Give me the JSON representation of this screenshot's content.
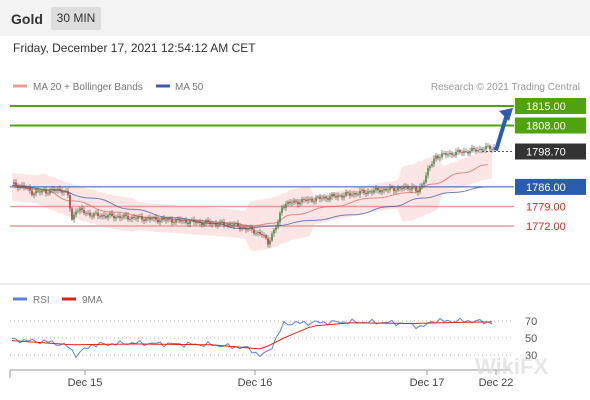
{
  "header": {
    "instrument": "Gold",
    "timeframe": "30 MIN",
    "datetime": "Friday, December 17, 2021 12:54:12 AM CET"
  },
  "legend": {
    "ma20_label": "MA 20 + Bollinger Bands",
    "ma50_label": "MA 50",
    "credit": "Research © 2021 Trading Central"
  },
  "colors": {
    "resistance": "#4fa30c",
    "support_line": "#e89c9c",
    "support_label": "#d9261c",
    "pivot": "#2a5cb0",
    "current": "#333333",
    "ma20": "#e06060",
    "ma50": "#3b5ea8",
    "band_fill": "#fbdcdc",
    "candle_up": "#3a8c3a",
    "candle_down": "#c03030",
    "rsi": "#5f80d8",
    "rsi_ma": "#d9261c"
  },
  "chart_data": [
    {
      "type": "candlestick",
      "ylim": [
        1760,
        1820
      ],
      "x_labels": [
        "Dec 15",
        "Dec 16",
        "Dec 17",
        "Dec 22"
      ],
      "levels": [
        {
          "name": "resistance-2",
          "value": 1815.0,
          "label": "1815.00",
          "kind": "resistance"
        },
        {
          "name": "resistance-1",
          "value": 1808.0,
          "label": "1808.00",
          "kind": "resistance"
        },
        {
          "name": "current-price",
          "value": 1798.7,
          "label": "1798.70",
          "kind": "current"
        },
        {
          "name": "pivot",
          "value": 1786.0,
          "label": "1786.00",
          "kind": "pivot"
        },
        {
          "name": "support-1",
          "value": 1779.0,
          "label": "1779.00",
          "kind": "support"
        },
        {
          "name": "support-2",
          "value": 1772.0,
          "label": "1772.00",
          "kind": "support"
        }
      ],
      "price_path": [
        [
          0,
          1787
        ],
        [
          6,
          1786
        ],
        [
          10,
          1784
        ],
        [
          18,
          1784.5
        ],
        [
          25,
          1785
        ],
        [
          28,
          1783
        ],
        [
          30,
          1774
        ],
        [
          32,
          1778
        ],
        [
          40,
          1776
        ],
        [
          50,
          1775.5
        ],
        [
          60,
          1775
        ],
        [
          70,
          1774.5
        ],
        [
          80,
          1774
        ],
        [
          90,
          1773.5
        ],
        [
          100,
          1773
        ],
        [
          110,
          1772.5
        ],
        [
          118,
          1771
        ],
        [
          125,
          1769
        ],
        [
          128,
          1766
        ],
        [
          130,
          1769
        ],
        [
          133,
          1773
        ],
        [
          135,
          1779
        ],
        [
          137,
          1780
        ],
        [
          145,
          1781
        ],
        [
          155,
          1782
        ],
        [
          165,
          1783
        ],
        [
          175,
          1784
        ],
        [
          185,
          1785
        ],
        [
          195,
          1785.5
        ],
        [
          200,
          1786
        ],
        [
          203,
          1784
        ],
        [
          205,
          1787
        ],
        [
          208,
          1792
        ],
        [
          212,
          1797
        ],
        [
          220,
          1798
        ],
        [
          230,
          1799
        ],
        [
          238,
          1800
        ],
        [
          241,
          1800
        ]
      ],
      "ma20": [
        [
          0,
          1786
        ],
        [
          15,
          1785
        ],
        [
          30,
          1781
        ],
        [
          50,
          1777
        ],
        [
          70,
          1775
        ],
        [
          90,
          1774
        ],
        [
          110,
          1773
        ],
        [
          120,
          1772
        ],
        [
          130,
          1773
        ],
        [
          140,
          1776
        ],
        [
          160,
          1779
        ],
        [
          180,
          1782
        ],
        [
          200,
          1784
        ],
        [
          210,
          1787
        ],
        [
          225,
          1791
        ],
        [
          238,
          1794
        ]
      ],
      "ma50": [
        [
          0,
          1786.5
        ],
        [
          20,
          1785
        ],
        [
          40,
          1782
        ],
        [
          60,
          1778
        ],
        [
          80,
          1775
        ],
        [
          100,
          1773
        ],
        [
          115,
          1771
        ],
        [
          130,
          1772
        ],
        [
          150,
          1774
        ],
        [
          170,
          1776
        ],
        [
          190,
          1779
        ],
        [
          205,
          1782
        ],
        [
          220,
          1784
        ],
        [
          238,
          1786
        ]
      ]
    },
    {
      "type": "line",
      "name": "RSI",
      "ylim": [
        20,
        80
      ],
      "y_ticks": [
        70,
        50,
        30
      ],
      "series": [
        {
          "name": "RSI",
          "values": [
            [
              0,
              48
            ],
            [
              20,
              45
            ],
            [
              28,
              40
            ],
            [
              32,
              30
            ],
            [
              40,
              42
            ],
            [
              60,
              44
            ],
            [
              80,
              43
            ],
            [
              100,
              42
            ],
            [
              118,
              38
            ],
            [
              125,
              28
            ],
            [
              130,
              40
            ],
            [
              136,
              67
            ],
            [
              150,
              68
            ],
            [
              170,
              69
            ],
            [
              190,
              68
            ],
            [
              200,
              66
            ],
            [
              205,
              62
            ],
            [
              210,
              70
            ],
            [
              220,
              70
            ],
            [
              230,
              70
            ],
            [
              241,
              68
            ]
          ]
        },
        {
          "name": "9MA",
          "values": [
            [
              0,
              47
            ],
            [
              30,
              42
            ],
            [
              60,
              43
            ],
            [
              100,
              42
            ],
            [
              125,
              37
            ],
            [
              136,
              50
            ],
            [
              150,
              64
            ],
            [
              170,
              68
            ],
            [
              200,
              67
            ],
            [
              215,
              68
            ],
            [
              241,
              69
            ]
          ]
        }
      ]
    }
  ],
  "rsi_legend": {
    "rsi_label": "RSI",
    "ma_label": "9MA"
  },
  "watermark": "WikiFX"
}
